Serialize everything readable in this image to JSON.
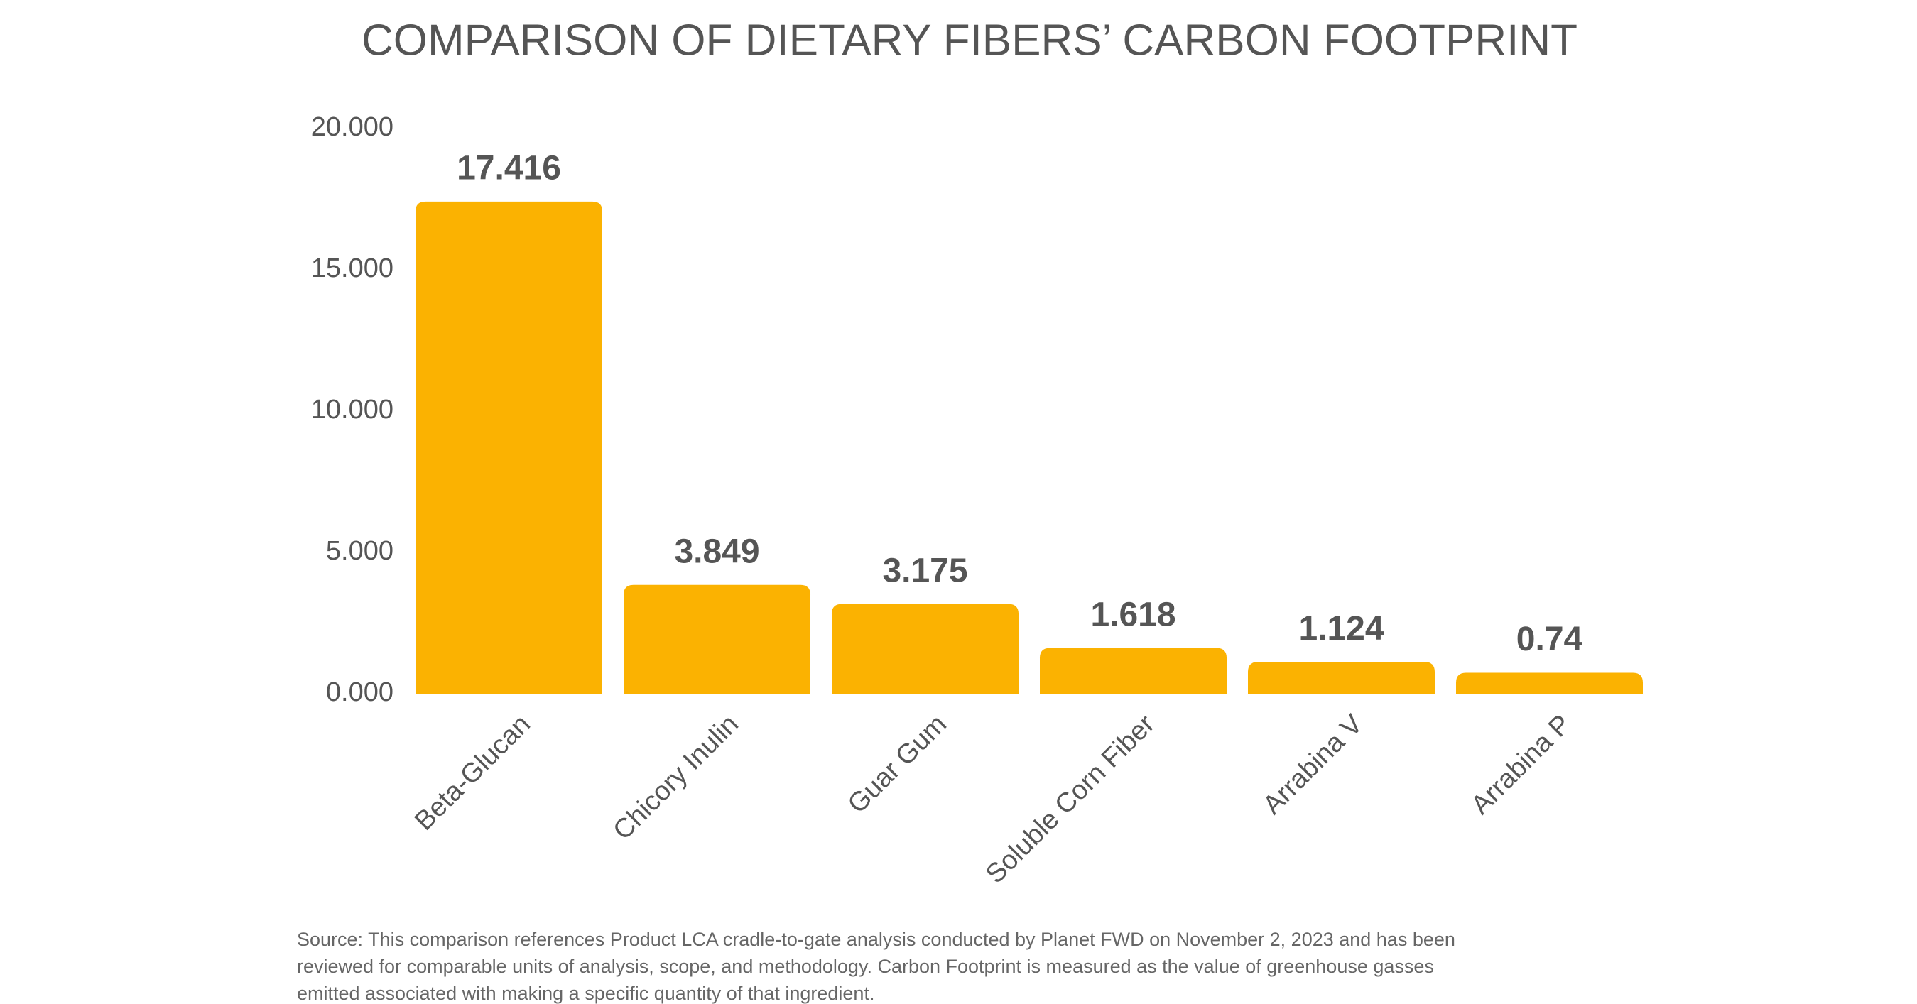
{
  "chart_data": {
    "type": "bar",
    "title": "COMPARISON OF DIETARY FIBERS’ CARBON FOOTPRINT",
    "categories": [
      "Beta-Glucan",
      "Chicory Inulin",
      "Guar Gum",
      "Soluble Corn Fiber",
      "Arrabina V",
      "Arrabina P"
    ],
    "values": [
      17.416,
      3.849,
      3.175,
      1.618,
      1.124,
      0.74
    ],
    "color": "#fbb201",
    "ylim": [
      0,
      20
    ],
    "yticks": [
      {
        "value": 0,
        "label": "0.000"
      },
      {
        "value": 5,
        "label": "5.000"
      },
      {
        "value": 10,
        "label": "10.000"
      },
      {
        "value": 15,
        "label": "15.000"
      },
      {
        "value": 20,
        "label": "20.000"
      }
    ],
    "grid": false,
    "source": [
      "Source: This comparison references Product LCA cradle-to-gate analysis conducted by Planet FWD on November 2, 2023 and has been",
      "reviewed for comparable units of analysis, scope, and methodology. Carbon Footprint is measured as the value of greenhouse gasses",
      "emitted associated with making a specific quantity of that ingredient."
    ]
  }
}
